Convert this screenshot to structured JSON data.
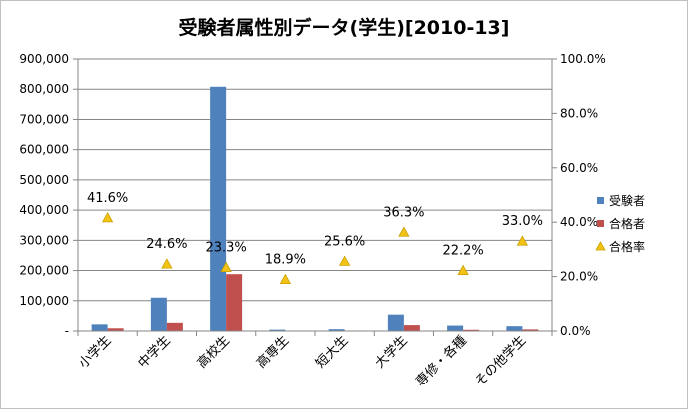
{
  "chart_data": {
    "type": "bar",
    "title": "受験者属性別データ(学生)[2010-13]",
    "categories": [
      "小学生",
      "中学生",
      "高校生",
      "高専生",
      "短大生",
      "大学生",
      "専修・各種",
      "その他学生"
    ],
    "series": [
      {
        "name": "受験者",
        "kind": "bar",
        "axis": "left",
        "color": "#4F81BD",
        "values": [
          22000,
          110000,
          808000,
          4500,
          6000,
          54000,
          18000,
          16000
        ]
      },
      {
        "name": "合格者",
        "kind": "bar",
        "axis": "left",
        "color": "#C0504D",
        "values": [
          9000,
          27000,
          188000,
          850,
          1500,
          19500,
          4000,
          5300
        ]
      },
      {
        "name": "合格率",
        "kind": "marker",
        "axis": "right",
        "color": "#F2C314",
        "values": [
          41.6,
          24.6,
          23.3,
          18.9,
          25.6,
          36.3,
          22.2,
          33.0
        ],
        "labels": [
          "41.6%",
          "24.6%",
          "23.3%",
          "18.9%",
          "25.6%",
          "36.3%",
          "22.2%",
          "33.0%"
        ]
      }
    ],
    "y_left": {
      "min": 0,
      "max": 900000,
      "ticks": [
        0,
        100000,
        200000,
        300000,
        400000,
        500000,
        600000,
        700000,
        800000,
        900000
      ],
      "tick_labels": [
        "-",
        "100,000",
        "200,000",
        "300,000",
        "400,000",
        "500,000",
        "600,000",
        "700,000",
        "800,000",
        "900,000"
      ]
    },
    "y_right": {
      "min": 0,
      "max": 100,
      "ticks": [
        0,
        20,
        40,
        60,
        80,
        100
      ],
      "tick_labels": [
        "0.0%",
        "20.0%",
        "40.0%",
        "60.0%",
        "80.0%",
        "100.0%"
      ]
    },
    "grid": true,
    "legend_position": "right"
  }
}
